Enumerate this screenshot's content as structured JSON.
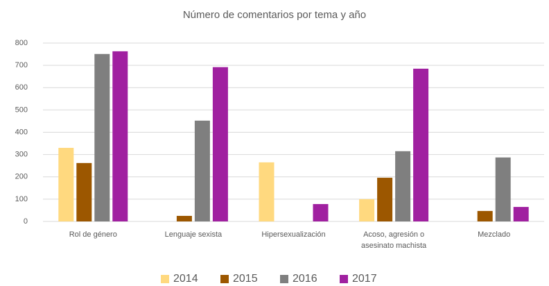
{
  "chart_data": {
    "type": "bar",
    "title": "Número de comentarios por tema y año",
    "categories": [
      "Rol de género",
      "Lenguaje sexista",
      "Hipersexualización",
      "Acoso, agresión o asesinato machista",
      "Mezclado"
    ],
    "series": [
      {
        "name": "2014",
        "color": "#ffd97f",
        "values": [
          330,
          0,
          265,
          100,
          0
        ]
      },
      {
        "name": "2015",
        "color": "#9c5700",
        "values": [
          262,
          25,
          0,
          196,
          47
        ]
      },
      {
        "name": "2016",
        "color": "#7f7f7f",
        "values": [
          751,
          452,
          0,
          315,
          287
        ]
      },
      {
        "name": "2017",
        "color": "#a020a0",
        "values": [
          763,
          692,
          78,
          685,
          65
        ]
      }
    ],
    "ylim": [
      0,
      800
    ],
    "yticks": [
      0,
      100,
      200,
      300,
      400,
      500,
      600,
      700,
      800
    ],
    "grid": true,
    "legend": "bottom"
  }
}
